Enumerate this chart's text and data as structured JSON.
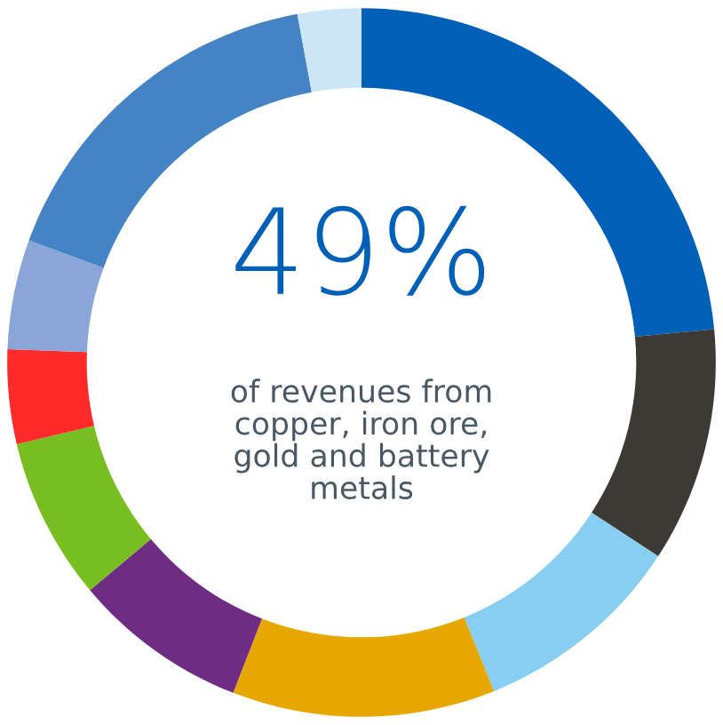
{
  "chart_data": {
    "type": "donut",
    "categories": [
      null,
      null,
      null,
      null,
      null,
      null,
      null,
      null,
      null,
      null
    ],
    "values": [
      23.5,
      10.7,
      9.7,
      12,
      8,
      7.4,
      4.3,
      5,
      16.5,
      2.9
    ],
    "colors": [
      "#0060b8",
      "#3d3935",
      "#87cef0",
      "#e6a800",
      "#6e2c82",
      "#78be20",
      "#ff2a2a",
      "#8aa6d8",
      "#4483c4",
      "#cce6f8"
    ],
    "annotations": [
      "49%",
      "of revenues from\ncopper, iron ore,\ngold and battery\nmetals"
    ]
  }
}
